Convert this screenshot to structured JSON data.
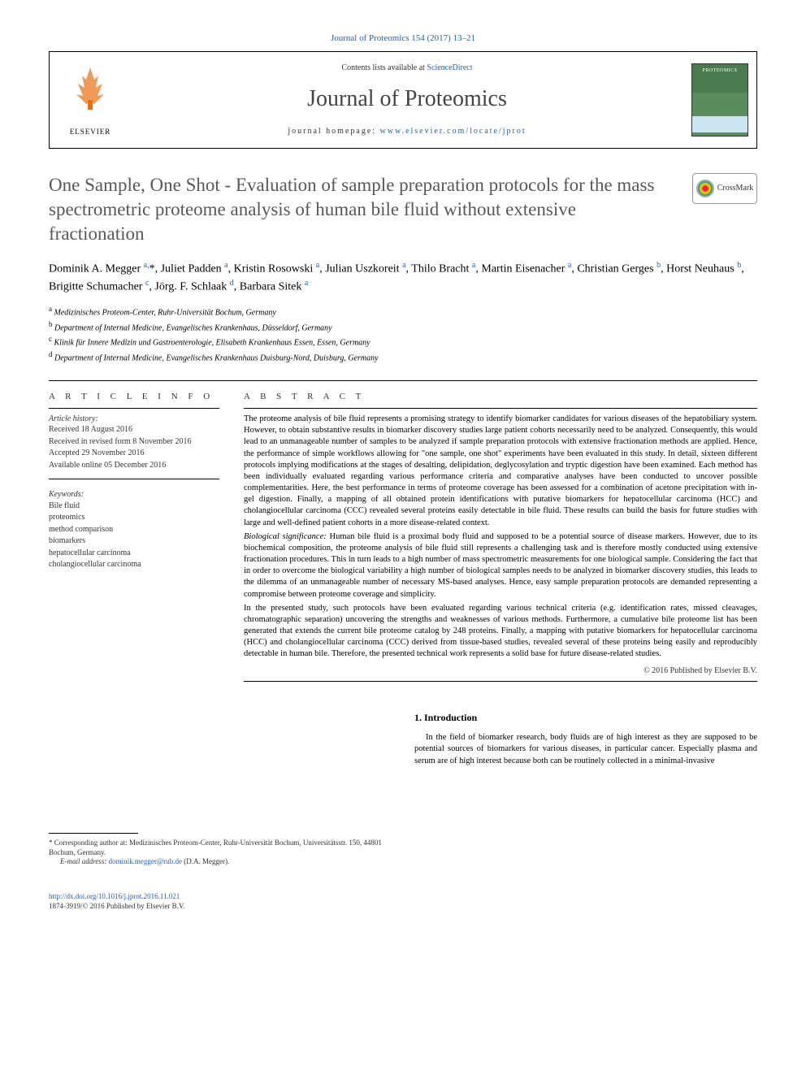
{
  "top_link": "Journal of Proteomics 154 (2017) 13–21",
  "header": {
    "contents_pre": "Contents lists available at ",
    "contents_link": "ScienceDirect",
    "journal": "Journal of Proteomics",
    "homepage_pre": "journal homepage: ",
    "homepage_link": "www.elsevier.com/locate/jprot",
    "elsevier_label": "ELSEVIER",
    "cover_title": "PROTEOMICS"
  },
  "crossmark_label": "CrossMark",
  "title": "One Sample, One Shot - Evaluation of sample preparation protocols for the mass spectrometric proteome analysis of human bile fluid without extensive fractionation",
  "authors_html": "Dominik A. Megger <sup>a,</sup>*, Juliet Padden <sup>a</sup>, Kristin Rosowski <sup>a</sup>, Julian Uszkoreit <sup>a</sup>, Thilo Bracht <sup>a</sup>, Martin Eisenacher <sup>a</sup>, Christian Gerges <sup>b</sup>, Horst Neuhaus <sup>b</sup>, Brigitte Schumacher <sup>c</sup>, Jörg. F. Schlaak <sup>d</sup>, Barbara Sitek <sup>a</sup>",
  "affiliations": [
    {
      "key": "a",
      "text": "Medizinisches Proteom-Center, Ruhr-Universität Bochum, Germany"
    },
    {
      "key": "b",
      "text": "Department of Internal Medicine, Evangelisches Krankenhaus, Düsseldorf, Germany"
    },
    {
      "key": "c",
      "text": "Klinik für Innere Medizin und Gastroenterologie, Elisabeth Krankenhaus Essen, Essen, Germany"
    },
    {
      "key": "d",
      "text": "Department of Internal Medicine, Evangelisches Krankenhaus Duisburg-Nord, Duisburg, Germany"
    }
  ],
  "article_info_label": "A R T I C L E   I N F O",
  "abstract_label": "A B S T R A C T",
  "history_label": "Article history:",
  "history": [
    "Received 18 August 2016",
    "Received in revised form 8 November 2016",
    "Accepted 29 November 2016",
    "Available online 05 December 2016"
  ],
  "keywords_label": "Keywords:",
  "keywords": [
    "Bile fluid",
    "proteomics",
    "method comparison",
    "biomarkers",
    "hepatocellular carcinoma",
    "cholangiocellular carcinoma"
  ],
  "abstract": {
    "p1": "The proteome analysis of bile fluid represents a promising strategy to identify biomarker candidates for various diseases of the hepatobiliary system. However, to obtain substantive results in biomarker discovery studies large patient cohorts necessarily need to be analyzed. Consequently, this would lead to an unmanageable number of samples to be analyzed if sample preparation protocols with extensive fractionation methods are applied. Hence, the performance of simple workflows allowing for \"one sample, one shot\" experiments have been evaluated in this study. In detail, sixteen different protocols implying modifications at the stages of desalting, delipidation, deglycosylation and tryptic digestion have been examined. Each method has been individually evaluated regarding various performance criteria and comparative analyses have been conducted to uncover possible complementarities. Here, the best performance in terms of proteome coverage has been assessed for a combination of acetone precipitation with in-gel digestion. Finally, a mapping of all obtained protein identifications with putative biomarkers for hepatocellular carcinoma (HCC) and cholangiocellular carcinoma (CCC) revealed several proteins easily detectable in bile fluid. These results can build the basis for future studies with large and well-defined patient cohorts in a more disease-related context.",
    "p2_label": "Biological significance:",
    "p2": " Human bile fluid is a proximal body fluid and supposed to be a potential source of disease markers. However, due to its biochemical composition, the proteome analysis of bile fluid still represents a challenging task and is therefore mostly conducted using extensive fractionation procedures. This in turn leads to a high number of mass spectrometric measurements for one biological sample. Considering the fact that in order to overcome the biological variability a high number of biological samples needs to be analyzed in biomarker discovery studies, this leads to the dilemma of an unmanageable number of necessary MS-based analyses. Hence, easy sample preparation protocols are demanded representing a compromise between proteome coverage and simplicity.",
    "p3": "In the presented study, such protocols have been evaluated regarding various technical criteria (e.g. identification rates, missed cleavages, chromatographic separation) uncovering the strengths and weaknesses of various methods. Furthermore, a cumulative bile proteome list has been generated that extends the current bile proteome catalog by 248 proteins. Finally, a mapping with putative biomarkers for hepatocellular carcinoma (HCC) and cholangiocellular carcinoma (CCC) derived from tissue-based studies, revealed several of these proteins being easily and reproducibly detectable in human bile. Therefore, the presented technical work represents a solid base for future disease-related studies."
  },
  "copyright": "© 2016 Published by Elsevier B.V.",
  "intro_heading": "1. Introduction",
  "intro_text": "In the field of biomarker research, body fluids are of high interest as they are supposed to be potential sources of biomarkers for various diseases, in particular cancer. Especially plasma and serum are of high interest because both can be routinely collected in a minimal-invasive",
  "corr_prefix": "* Corresponding author at: Medizinisches Proteom-Center, Ruhr-Universität Bochum, Universitätsstr. 150, 44801 Bochum, Germany.",
  "email_label": "E-mail address:",
  "email_link": "dominik.megger@rub.de",
  "email_suffix": " (D.A. Megger).",
  "doi_link": "http://dx.doi.org/10.1016/j.jprot.2016.11.021",
  "issn_line": "1874-3919/© 2016 Published by Elsevier B.V.",
  "colors": {
    "link": "#2860a8",
    "heading": "#585858",
    "elsevier_orange": "#e8700f"
  }
}
